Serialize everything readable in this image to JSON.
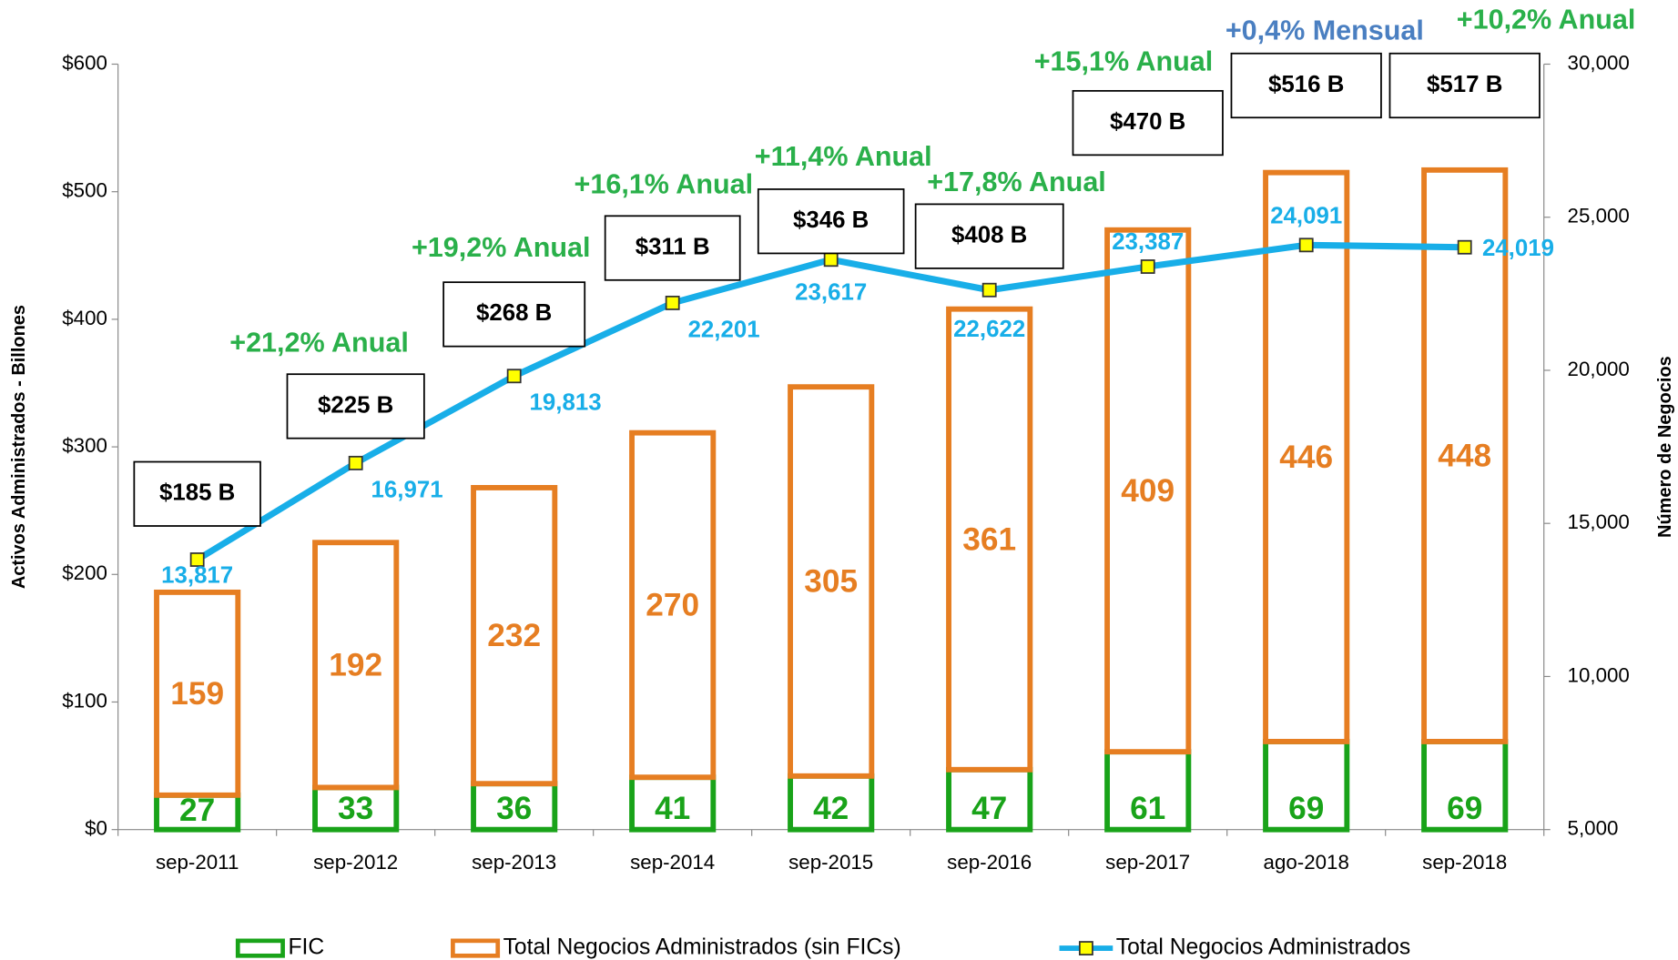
{
  "chart_data": {
    "type": "bar",
    "categories": [
      "sep-2011",
      "sep-2012",
      "sep-2013",
      "sep-2014",
      "sep-2015",
      "sep-2016",
      "sep-2017",
      "ago-2018",
      "sep-2018"
    ],
    "series": [
      {
        "name": "FIC",
        "color": "#19a319",
        "values": [
          27,
          33,
          36,
          41,
          42,
          47,
          61,
          69,
          69
        ]
      },
      {
        "name": "Total Negocios Administrados (sin FICs)",
        "color": "#e67e22",
        "values": [
          159,
          192,
          232,
          270,
          305,
          361,
          409,
          446,
          448
        ]
      },
      {
        "name": "Total Negocios Administrados",
        "type": "line",
        "axis": "y2",
        "color": "#18aee8",
        "marker_color": "#ffff00",
        "values": [
          13817,
          16971,
          19813,
          22201,
          23617,
          22622,
          23387,
          24091,
          24019
        ],
        "value_labels": [
          "13,817",
          "16,971",
          "19,813",
          "22,201",
          "23,617",
          "22,622",
          "23,387",
          "24,091",
          "24,019"
        ]
      }
    ],
    "total_labels": [
      "$185 B",
      "$225 B",
      "$268 B",
      "$311 B",
      "$346 B",
      "$408 B",
      "$470 B",
      "$516 B",
      "$517 B"
    ],
    "growth_labels": [
      {
        "category": 1,
        "text": "+21,2% Anual",
        "color": "#2ab04a"
      },
      {
        "category": 2,
        "text": "+19,2% Anual",
        "color": "#2ab04a"
      },
      {
        "category": 3,
        "text": "+16,1% Anual",
        "color": "#2ab04a"
      },
      {
        "category": 4,
        "text": "+11,4% Anual",
        "color": "#2ab04a"
      },
      {
        "category": 5,
        "text": "+17,8% Anual",
        "color": "#2ab04a"
      },
      {
        "category": 6,
        "text": "+15,1% Anual",
        "color": "#2ab04a"
      },
      {
        "category": 7,
        "text": "+0,4% Mensual",
        "color": "#4a7fc1"
      },
      {
        "category": 8,
        "text": "+10,2% Anual",
        "color": "#2ab04a"
      }
    ],
    "ylabel": "Activos Administrados - Billones",
    "y2label": "Número de Negocios",
    "ylim": [
      0,
      600
    ],
    "yticks": [
      {
        "value": 0,
        "label": "$0"
      },
      {
        "value": 100,
        "label": "$100"
      },
      {
        "value": 200,
        "label": "$200"
      },
      {
        "value": 300,
        "label": "$300"
      },
      {
        "value": 400,
        "label": "$400"
      },
      {
        "value": 500,
        "label": "$500"
      },
      {
        "value": 600,
        "label": "$600"
      }
    ],
    "y2lim": [
      5000,
      30000
    ],
    "y2ticks": [
      {
        "value": 5000,
        "label": "5,000"
      },
      {
        "value": 10000,
        "label": "10,000"
      },
      {
        "value": 15000,
        "label": "15,000"
      },
      {
        "value": 20000,
        "label": "20,000"
      },
      {
        "value": 25000,
        "label": "25,000"
      },
      {
        "value": 30000,
        "label": "30,000"
      }
    ],
    "grid": false,
    "legend": "bottom"
  }
}
